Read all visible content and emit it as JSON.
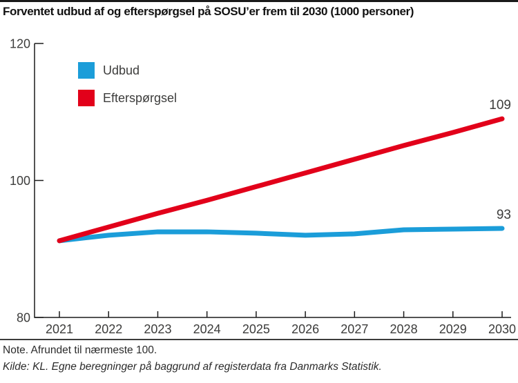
{
  "header": {
    "title": "Forventet udbud af og efterspørgsel på SOSU’er frem til 2030 (1000 personer)"
  },
  "chart_data": {
    "type": "line",
    "title": "Forventet udbud af og efterspørgsel på SOSU’er frem til 2030 (1000 personer)",
    "x": [
      2021,
      2022,
      2023,
      2024,
      2025,
      2026,
      2027,
      2028,
      2029,
      2030
    ],
    "series": [
      {
        "id": "udbud",
        "name": "Udbud",
        "color": "#1b9dd9",
        "values": [
          91.2,
          92.0,
          92.5,
          92.5,
          92.3,
          92.0,
          92.2,
          92.8,
          92.9,
          93.0
        ],
        "end_label": "93"
      },
      {
        "id": "efterspoergsel",
        "name": "Efterspørgsel",
        "color": "#e2001a",
        "values": [
          91.2,
          93.2,
          95.2,
          97.1,
          99.1,
          101.1,
          103.1,
          105.1,
          107.0,
          109.0
        ],
        "end_label": "109"
      }
    ],
    "ylim": [
      80,
      120
    ],
    "yticks": [
      80,
      100,
      120
    ],
    "grid": false,
    "legend_position": "top-left",
    "axis_color": "#1a1a1a",
    "tick_label_color": "#3c3c3b",
    "end_label_color": "#3c3c3b"
  },
  "footer": {
    "note": "Note. Afrundet til nærmeste 100.",
    "source": "Kilde: KL. Egne beregninger på baggrund af registerdata fra Danmarks Statistik."
  }
}
